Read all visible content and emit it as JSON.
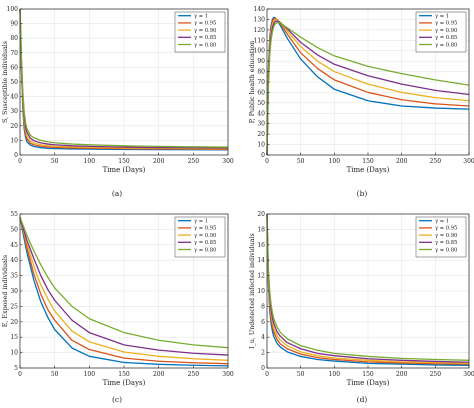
{
  "colors": [
    "#0072BD",
    "#D95319",
    "#EDB120",
    "#7E2F8E",
    "#77AC30"
  ],
  "chart_data": [
    {
      "type": "line",
      "panel_label": "(a)",
      "xlabel": "Time (Days)",
      "ylabel": "S, Susceptible individuals",
      "xlim": [
        0,
        300
      ],
      "ylim": [
        0,
        100
      ],
      "xticks": [
        0,
        50,
        100,
        150,
        200,
        250,
        300
      ],
      "yticks": [
        0,
        10,
        20,
        30,
        40,
        50,
        60,
        70,
        80,
        90,
        100
      ],
      "grid": true,
      "legend_position": "top-right",
      "x": [
        0,
        2,
        4,
        6,
        8,
        10,
        15,
        20,
        30,
        40,
        50,
        75,
        100,
        150,
        200,
        250,
        300
      ],
      "series": [
        {
          "name": "γ = 1",
          "values": [
            100,
            60,
            32,
            18,
            12,
            9,
            6.8,
            5.8,
            5,
            4.6,
            4.4,
            4.1,
            4,
            3.8,
            3.7,
            3.6,
            3.5
          ]
        },
        {
          "name": "γ = 0.95",
          "values": [
            100,
            62,
            35,
            21,
            14,
            11,
            8,
            7,
            6,
            5.5,
            5.2,
            4.8,
            4.6,
            4.3,
            4.1,
            4,
            3.9
          ]
        },
        {
          "name": "γ = 0.90",
          "values": [
            100,
            64,
            38,
            24,
            16.5,
            13,
            9.5,
            8.2,
            7,
            6.4,
            6,
            5.5,
            5.2,
            4.8,
            4.6,
            4.4,
            4.3
          ]
        },
        {
          "name": "γ = 0.85",
          "values": [
            100,
            66,
            41,
            27,
            19,
            15.5,
            11.5,
            9.8,
            8.3,
            7.5,
            7,
            6.3,
            5.9,
            5.4,
            5.1,
            4.9,
            4.8
          ]
        },
        {
          "name": "γ = 0.80",
          "values": [
            100,
            68,
            44,
            30,
            22,
            18,
            13.5,
            11.8,
            10,
            9,
            8.4,
            7.5,
            7,
            6.3,
            5.9,
            5.6,
            5.4
          ]
        }
      ]
    },
    {
      "type": "line",
      "panel_label": "(b)",
      "xlabel": "Time (Days)",
      "ylabel": "P, Public health education",
      "xlim": [
        0,
        300
      ],
      "ylim": [
        0,
        140
      ],
      "xticks": [
        0,
        50,
        100,
        150,
        200,
        250,
        300
      ],
      "yticks": [
        0,
        10,
        20,
        30,
        40,
        50,
        60,
        70,
        80,
        90,
        100,
        110,
        120,
        130,
        140
      ],
      "grid": true,
      "legend_position": "top-right",
      "x": [
        0,
        2,
        4,
        6,
        8,
        10,
        12,
        15,
        20,
        30,
        50,
        75,
        100,
        150,
        200,
        250,
        300
      ],
      "series": [
        {
          "name": "γ = 1",
          "values": [
            0,
            80,
            112,
            124,
            130,
            132,
            131.5,
            129,
            124,
            112,
            92,
            75,
            63,
            52,
            47,
            45,
            44
          ]
        },
        {
          "name": "γ = 0.95",
          "values": [
            0,
            76,
            108,
            121,
            128,
            130.5,
            131,
            130,
            126,
            116,
            98,
            83,
            72,
            60,
            53,
            49,
            47
          ]
        },
        {
          "name": "γ = 0.90",
          "values": [
            0,
            72,
            104,
            118,
            125,
            128.5,
            129.5,
            129.5,
            127,
            119,
            104,
            90,
            80,
            68,
            60,
            55,
            52
          ]
        },
        {
          "name": "γ = 0.85",
          "values": [
            0,
            68,
            100,
            114,
            122,
            126,
            128,
            128.5,
            127,
            121,
            108,
            96,
            87,
            76,
            68,
            62,
            58
          ]
        },
        {
          "name": "γ = 0.80",
          "values": [
            0,
            64,
            95,
            110,
            118,
            123,
            125.5,
            127,
            126.5,
            122,
            113,
            103,
            95,
            85,
            78,
            72,
            67
          ]
        }
      ]
    },
    {
      "type": "line",
      "panel_label": "(c)",
      "xlabel": "Time (Days)",
      "ylabel": "E, Exposed individuals",
      "xlim": [
        0,
        300
      ],
      "ylim": [
        5,
        55
      ],
      "xticks": [
        0,
        50,
        100,
        150,
        200,
        250,
        300
      ],
      "yticks": [
        5,
        10,
        15,
        20,
        25,
        30,
        35,
        40,
        45,
        50,
        55
      ],
      "grid": true,
      "legend_position": "top-right",
      "x": [
        0,
        5,
        10,
        20,
        30,
        40,
        50,
        75,
        100,
        150,
        200,
        250,
        300
      ],
      "series": [
        {
          "name": "γ = 1",
          "values": [
            54,
            48,
            42.5,
            33.5,
            26.5,
            21.5,
            17.5,
            11.5,
            8.8,
            6.8,
            6.2,
            5.9,
            5.7
          ]
        },
        {
          "name": "γ = 0.95",
          "values": [
            54,
            49,
            44,
            35.5,
            29,
            24,
            20.5,
            14,
            11,
            8.2,
            7.2,
            6.7,
            6.4
          ]
        },
        {
          "name": "γ = 0.90",
          "values": [
            54,
            49.5,
            45.5,
            38,
            32,
            27.5,
            23.5,
            17,
            13.5,
            10.2,
            8.8,
            8,
            7.5
          ]
        },
        {
          "name": "γ = 0.85",
          "values": [
            54,
            50,
            46.5,
            40.5,
            35,
            30.5,
            27,
            20.5,
            16.5,
            12.5,
            10.8,
            9.8,
            9.2
          ]
        },
        {
          "name": "γ = 0.80",
          "values": [
            54,
            51,
            48,
            43,
            38.5,
            34.5,
            31,
            25,
            21,
            16.5,
            14,
            12.5,
            11.6
          ]
        }
      ]
    },
    {
      "type": "line",
      "panel_label": "(d)",
      "xlabel": "Time (Days)",
      "ylabel": "I_u, Undetected infected individuals",
      "xlim": [
        0,
        300
      ],
      "ylim": [
        0,
        20
      ],
      "xticks": [
        0,
        50,
        100,
        150,
        200,
        250,
        300
      ],
      "yticks": [
        0,
        2,
        4,
        6,
        8,
        10,
        12,
        14,
        16,
        18,
        20
      ],
      "grid": true,
      "legend_position": "top-right",
      "x": [
        0,
        2,
        4,
        6,
        8,
        10,
        15,
        20,
        30,
        50,
        75,
        100,
        150,
        200,
        250,
        300
      ],
      "series": [
        {
          "name": "γ = 1",
          "values": [
            20,
            11,
            7.5,
            5.8,
            4.8,
            4.1,
            3.2,
            2.7,
            2.1,
            1.5,
            1.1,
            0.9,
            0.6,
            0.5,
            0.4,
            0.35
          ]
        },
        {
          "name": "γ = 0.95",
          "values": [
            20,
            11.5,
            8.2,
            6.4,
            5.4,
            4.7,
            3.7,
            3.1,
            2.5,
            1.8,
            1.35,
            1.1,
            0.8,
            0.65,
            0.55,
            0.5
          ]
        },
        {
          "name": "γ = 0.90",
          "values": [
            20,
            12,
            8.8,
            7,
            6,
            5.2,
            4.2,
            3.6,
            2.9,
            2.1,
            1.6,
            1.3,
            1,
            0.8,
            0.7,
            0.6
          ]
        },
        {
          "name": "γ = 0.85",
          "values": [
            20,
            12.5,
            9.4,
            7.6,
            6.5,
            5.8,
            4.7,
            4.1,
            3.3,
            2.5,
            1.9,
            1.6,
            1.2,
            1,
            0.85,
            0.75
          ]
        },
        {
          "name": "γ = 0.80",
          "values": [
            20,
            13,
            10,
            8.3,
            7.2,
            6.4,
            5.3,
            4.6,
            3.8,
            2.9,
            2.3,
            1.9,
            1.5,
            1.25,
            1.1,
            1
          ]
        }
      ]
    }
  ]
}
